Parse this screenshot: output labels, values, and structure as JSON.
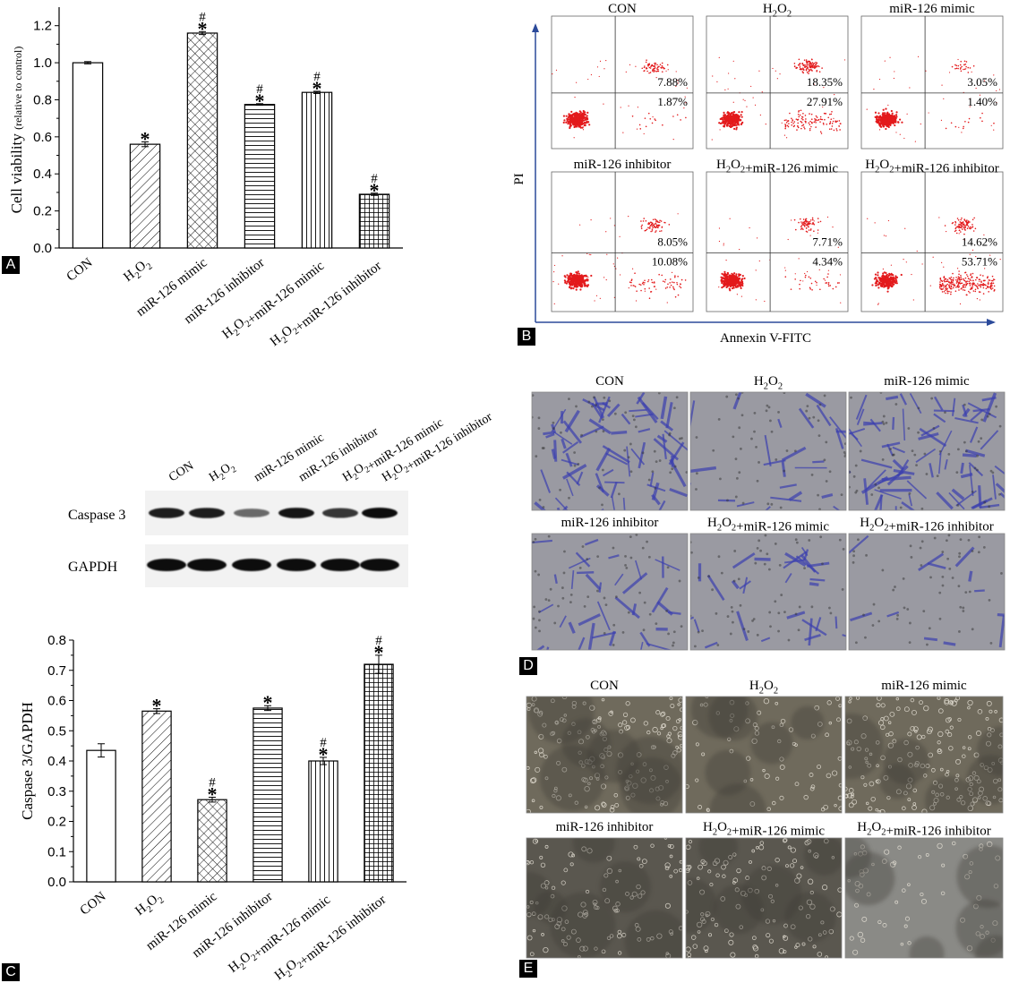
{
  "panels": {
    "a": "A",
    "b": "B",
    "c": "C",
    "d": "D",
    "e": "E"
  },
  "groups": [
    "CON",
    "H2O2",
    "miR-126 mimic",
    "miR-126 inhibitor",
    "H2O2+miR-126 mimic",
    "H2O2+miR-126 inhibitor"
  ],
  "chart_a": {
    "type": "bar",
    "ylabel": "Cell viability",
    "ylabel_sub": "(relative to control)",
    "ylim": [
      0,
      1.3
    ],
    "yticks": [
      "0.0",
      "0.2",
      "0.4",
      "0.6",
      "0.8",
      "1.0",
      "1.2"
    ],
    "values": [
      1.0,
      0.56,
      1.16,
      0.775,
      0.84,
      0.29
    ],
    "errors": [
      0.006,
      0.013,
      0.008,
      0.004,
      0.006,
      0.006
    ],
    "patterns": [
      "none",
      "diag",
      "cross",
      "hlines",
      "vlines",
      "grid"
    ],
    "marks": [
      [
        "",
        ""
      ],
      [
        "*",
        ""
      ],
      [
        "*",
        "#"
      ],
      [
        "*",
        "#"
      ],
      [
        "*",
        "#"
      ],
      [
        "*",
        "#"
      ]
    ]
  },
  "flow_b": {
    "ylabel": "PI",
    "xlabel": "Annexin V-FITC",
    "titles": [
      "CON",
      "H2O2",
      "miR-126 mimic",
      "miR-126 inhibitor",
      "H2O2+miR-126 mimic",
      "H2O2+miR-126 inhibitor"
    ],
    "upper": [
      "7.88%",
      "18.35%",
      "3.05%",
      "8.05%",
      "7.71%",
      "14.62%"
    ],
    "lower": [
      "1.87%",
      "27.91%",
      "1.40%",
      "10.08%",
      "4.34%",
      "53.71%"
    ]
  },
  "western": {
    "lanes": [
      "CON",
      "H2O2",
      "miR-126 mimic",
      "miR-126 inhibitor",
      "H2O2+miR-126 mimic",
      "H2O2+miR-126 inhibitor"
    ],
    "rows": [
      "Caspase 3",
      "GAPDH"
    ],
    "caspase_intensity": [
      0.9,
      0.9,
      0.45,
      0.95,
      0.75,
      1.0
    ]
  },
  "chart_c": {
    "type": "bar",
    "ylabel": "Caspase 3/GAPDH",
    "ylim": [
      0,
      0.8
    ],
    "yticks": [
      "0.0",
      "0.1",
      "0.2",
      "0.3",
      "0.4",
      "0.5",
      "0.6",
      "0.7",
      "0.8"
    ],
    "values": [
      0.435,
      0.565,
      0.272,
      0.575,
      0.4,
      0.72
    ],
    "errors": [
      0.022,
      0.008,
      0.008,
      0.008,
      0.012,
      0.03
    ],
    "patterns": [
      "none",
      "diag",
      "cross",
      "hlines",
      "vlines",
      "grid"
    ],
    "marks": [
      [
        "",
        ""
      ],
      [
        "*",
        ""
      ],
      [
        "*",
        "#"
      ],
      [
        "*",
        ""
      ],
      [
        "*",
        "#"
      ],
      [
        "*",
        "#"
      ]
    ]
  },
  "micro_d": {
    "titles": [
      "CON",
      "H2O2",
      "miR-126 mimic",
      "miR-126 inhibitor",
      "H2O2+miR-126 mimic",
      "H2O2+miR-126 inhibitor"
    ]
  },
  "micro_e": {
    "titles": [
      "CON",
      "H2O2",
      "miR-126 mimic",
      "miR-126 inhibitor",
      "H2O2+miR-126 mimic",
      "H2O2+miR-126 inhibitor"
    ]
  },
  "colors": {
    "flow_dot": "#e31a1c",
    "stain_blue": "#3b3fb0",
    "phase_gray": "#8a8478"
  }
}
